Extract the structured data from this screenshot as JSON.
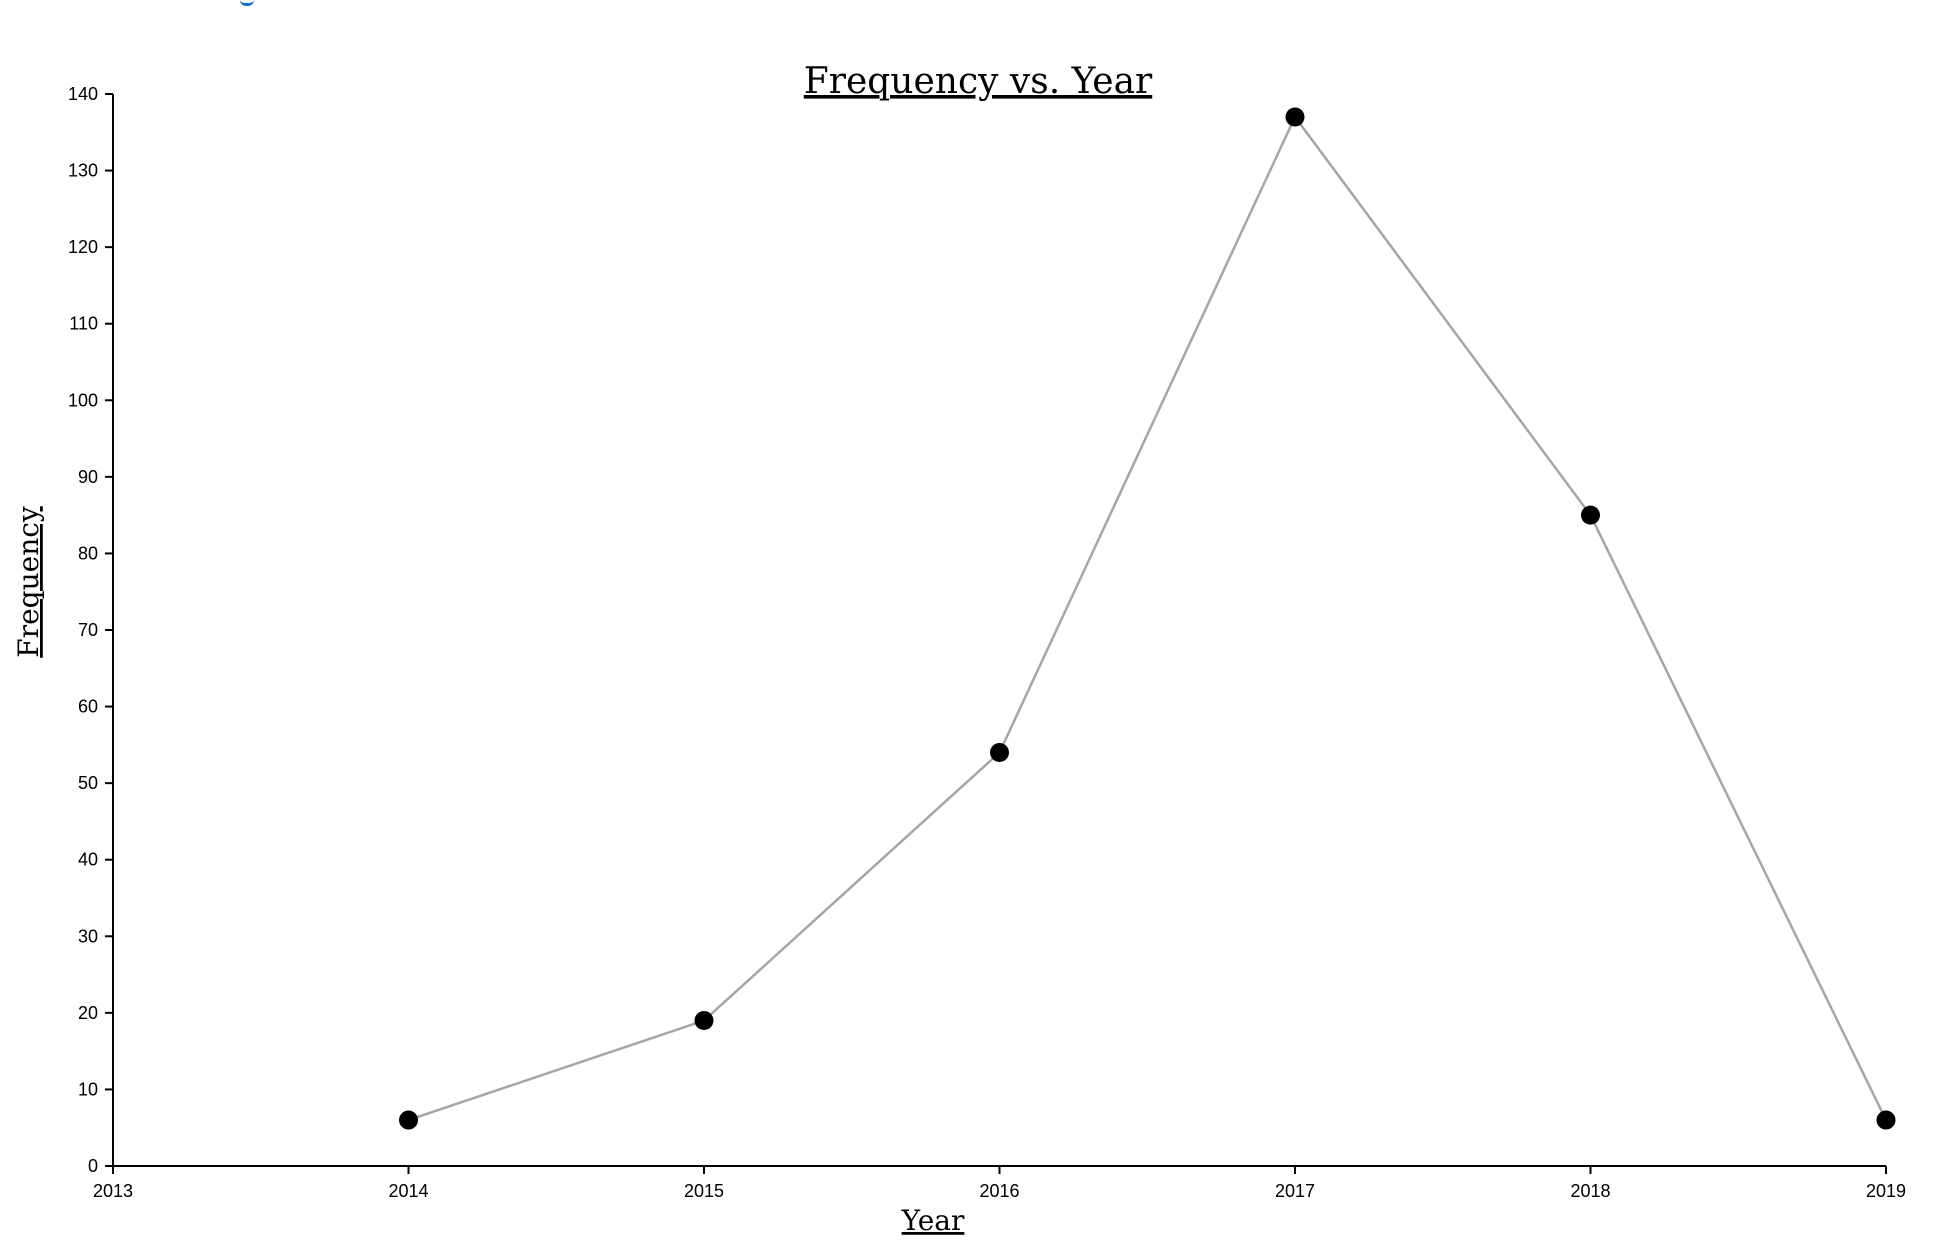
{
  "colors": {
    "line": "#a6a6a6",
    "marker": "#000000",
    "axis": "#000000",
    "background": "#ffffff",
    "top_fragment": "#1a6fd1"
  },
  "chart_data": {
    "type": "line",
    "title": "Frequency vs. Year",
    "xlabel": "Year",
    "ylabel": "Frequency",
    "x": [
      2014,
      2015,
      2016,
      2017,
      2018,
      2019
    ],
    "series": [
      {
        "values": [
          6,
          19,
          54,
          137,
          85,
          6
        ]
      }
    ],
    "xlim": [
      2013,
      2019
    ],
    "ylim": [
      0,
      140
    ],
    "x_ticks": [
      2013,
      2014,
      2015,
      2016,
      2017,
      2018,
      2019
    ],
    "y_ticks": [
      0,
      10,
      20,
      30,
      40,
      50,
      60,
      70,
      80,
      90,
      100,
      110,
      120,
      130,
      140
    ],
    "grid": false,
    "markers": true
  }
}
